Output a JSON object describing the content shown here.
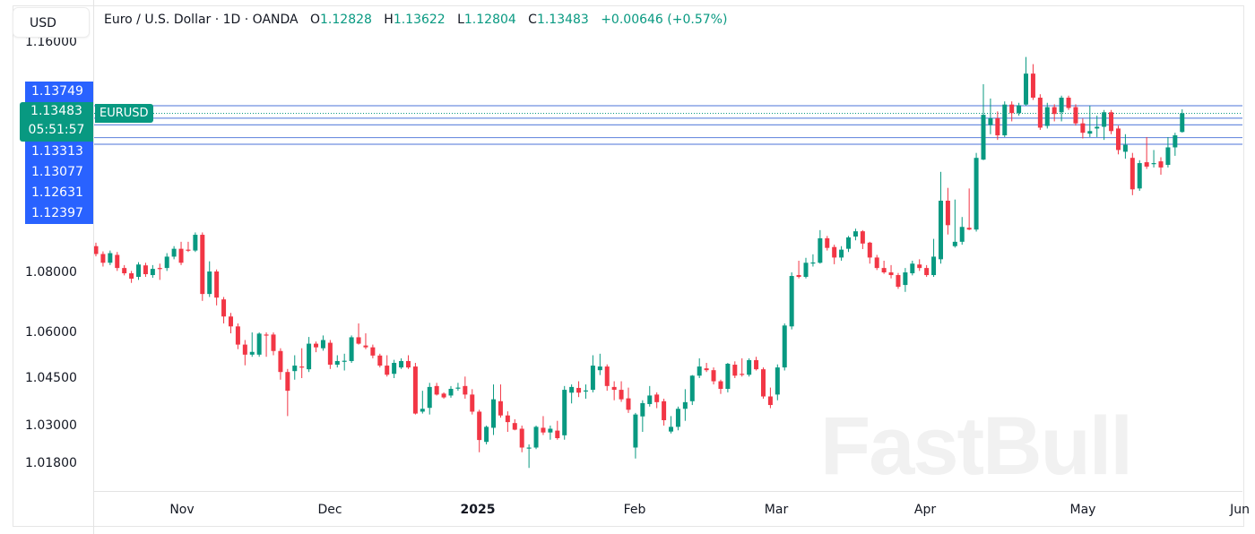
{
  "header": {
    "symbol_name": "Euro / U.S. Dollar · 1D · OANDA",
    "open_label": "O",
    "open": "1.12828",
    "high_label": "H",
    "high": "1.13622",
    "low_label": "L",
    "low": "1.12804",
    "close_label": "C",
    "close": "1.13483",
    "change": "+0.00646 (+0.57%)"
  },
  "currency_button": "USD",
  "symbol_tag": "EURUSD",
  "current_price": "1.13483",
  "countdown": "05:51:57",
  "price_line_labels": [
    "1.13749",
    "1.13313",
    "1.13077",
    "1.12631",
    "1.12397"
  ],
  "watermark": "FastBull",
  "colors": {
    "up": "#089981",
    "down": "#f23645",
    "price_line": "#2962ff"
  },
  "chart_data": {
    "type": "candlestick",
    "interval": "1D",
    "y_ticks": [
      "1.16000",
      "1.08000",
      "1.06000",
      "1.04500",
      "1.03000",
      "1.01800"
    ],
    "x_ticks": [
      "Nov",
      "Dec",
      "2025",
      "Feb",
      "Mar",
      "Apr",
      "May",
      "Jun"
    ],
    "price_lines": [
      1.13749,
      1.13313,
      1.13077,
      1.12631,
      1.12397
    ],
    "current_price": 1.13483,
    "grid": false,
    "ohlc": [
      [
        1.089,
        1.0902,
        1.0855,
        1.0863
      ],
      [
        1.0863,
        1.0872,
        1.082,
        1.0833
      ],
      [
        1.0833,
        1.0875,
        1.0825,
        1.0866
      ],
      [
        1.086,
        1.087,
        1.0805,
        1.0815
      ],
      [
        1.0815,
        1.0825,
        1.079,
        1.0797
      ],
      [
        1.0797,
        1.0805,
        1.0765,
        1.0779
      ],
      [
        1.0785,
        1.0835,
        1.0775,
        1.0827
      ],
      [
        1.0824,
        1.0833,
        1.0785,
        1.0794
      ],
      [
        1.0791,
        1.0825,
        1.0782,
        1.0812
      ],
      [
        1.0815,
        1.083,
        1.0775,
        1.0814
      ],
      [
        1.0815,
        1.0866,
        1.0805,
        1.0854
      ],
      [
        1.0854,
        1.089,
        1.0845,
        1.0881
      ],
      [
        1.0881,
        1.0905,
        1.0825,
        1.0833
      ],
      [
        1.0878,
        1.0905,
        1.087,
        1.0875
      ],
      [
        1.0875,
        1.0937,
        1.087,
        1.0929
      ],
      [
        1.0929,
        1.0937,
        1.0705,
        1.0728
      ],
      [
        1.0728,
        1.0838,
        1.0718,
        1.0803
      ],
      [
        1.0803,
        1.081,
        1.069,
        1.0716
      ],
      [
        1.071,
        1.0718,
        1.063,
        1.0653
      ],
      [
        1.0653,
        1.0665,
        1.0597,
        1.062
      ],
      [
        1.062,
        1.063,
        1.0545,
        1.056
      ],
      [
        1.056,
        1.0575,
        1.0492,
        1.0527
      ],
      [
        1.0527,
        1.06,
        1.052,
        1.0536
      ],
      [
        1.0527,
        1.06,
        1.052,
        1.0596
      ],
      [
        1.0593,
        1.06,
        1.052,
        1.0592
      ],
      [
        1.0593,
        1.06,
        1.0525,
        1.0539
      ],
      [
        1.0539,
        1.0548,
        1.0445,
        1.047
      ],
      [
        1.047,
        1.048,
        1.033,
        1.041
      ],
      [
        1.0473,
        1.0525,
        1.0445,
        1.0491
      ],
      [
        1.0488,
        1.0548,
        1.045,
        1.0487
      ],
      [
        1.0479,
        1.0585,
        1.047,
        1.0563
      ],
      [
        1.0563,
        1.057,
        1.0535,
        1.0551
      ],
      [
        1.0548,
        1.059,
        1.054,
        1.0575
      ],
      [
        1.0566,
        1.0575,
        1.048,
        1.0494
      ],
      [
        1.0494,
        1.0525,
        1.0485,
        1.0506
      ],
      [
        1.0506,
        1.053,
        1.0475,
        1.0507
      ],
      [
        1.0506,
        1.059,
        1.05,
        1.0584
      ],
      [
        1.0584,
        1.063,
        1.056,
        1.0563
      ],
      [
        1.0557,
        1.0597,
        1.0545,
        1.0551
      ],
      [
        1.0551,
        1.056,
        1.0515,
        1.0524
      ],
      [
        1.0524,
        1.053,
        1.0485,
        1.0491
      ],
      [
        1.0491,
        1.0525,
        1.0455,
        1.0461
      ],
      [
        1.0464,
        1.051,
        1.045,
        1.05
      ],
      [
        1.0485,
        1.0515,
        1.048,
        1.0506
      ],
      [
        1.0506,
        1.0525,
        1.048,
        1.0485
      ],
      [
        1.0488,
        1.05,
        1.0335,
        1.0338
      ],
      [
        1.0344,
        1.041,
        1.0338,
        1.0353
      ],
      [
        1.0356,
        1.0435,
        1.0335,
        1.0422
      ],
      [
        1.0425,
        1.0435,
        1.0395,
        1.0398
      ],
      [
        1.0401,
        1.0405,
        1.0385,
        1.0389
      ],
      [
        1.0395,
        1.0425,
        1.0388,
        1.0416
      ],
      [
        1.0419,
        1.0435,
        1.041,
        1.042
      ],
      [
        1.0425,
        1.0455,
        1.0385,
        1.0398
      ],
      [
        1.0398,
        1.0415,
        1.0335,
        1.0344
      ],
      [
        1.0344,
        1.035,
        1.0215,
        1.0254
      ],
      [
        1.0248,
        1.03,
        1.024,
        1.0296
      ],
      [
        1.0293,
        1.043,
        1.027,
        1.0383
      ],
      [
        1.0377,
        1.043,
        1.0325,
        1.0332
      ],
      [
        1.0332,
        1.0345,
        1.028,
        1.0311
      ],
      [
        1.0308,
        1.032,
        1.0285,
        1.0287
      ],
      [
        1.029,
        1.03,
        1.0215,
        1.023
      ],
      [
        1.0227,
        1.024,
        1.0165,
        1.023
      ],
      [
        1.023,
        1.03,
        1.0225,
        1.0296
      ],
      [
        1.0293,
        1.033,
        1.027,
        1.0278
      ],
      [
        1.0278,
        1.03,
        1.0255,
        1.029
      ],
      [
        1.0284,
        1.0315,
        1.0255,
        1.026
      ],
      [
        1.0269,
        1.0425,
        1.0255,
        1.0413
      ],
      [
        1.0404,
        1.043,
        1.037,
        1.0422
      ],
      [
        1.0419,
        1.044,
        1.039,
        1.0404
      ],
      [
        1.041,
        1.043,
        1.0385,
        1.0411
      ],
      [
        1.0413,
        1.0525,
        1.0405,
        1.0491
      ],
      [
        1.0476,
        1.053,
        1.046,
        1.0488
      ],
      [
        1.0488,
        1.0495,
        1.041,
        1.0425
      ],
      [
        1.0422,
        1.044,
        1.038,
        1.0413
      ],
      [
        1.0413,
        1.044,
        1.0375,
        1.0383
      ],
      [
        1.0386,
        1.042,
        1.034,
        1.035
      ],
      [
        1.023,
        1.034,
        1.0195,
        1.0335
      ],
      [
        1.0329,
        1.038,
        1.028,
        1.0371
      ],
      [
        1.0368,
        1.0425,
        1.036,
        1.0395
      ],
      [
        1.0398,
        1.0405,
        1.0355,
        1.0374
      ],
      [
        1.0377,
        1.0385,
        1.03,
        1.0317
      ],
      [
        1.0281,
        1.033,
        1.0275,
        1.0296
      ],
      [
        1.0296,
        1.036,
        1.0285,
        1.0353
      ],
      [
        1.0353,
        1.0415,
        1.0315,
        1.0374
      ],
      [
        1.0377,
        1.046,
        1.0365,
        1.0458
      ],
      [
        1.0458,
        1.0515,
        1.045,
        1.0488
      ],
      [
        1.0482,
        1.05,
        1.047,
        1.0476
      ],
      [
        1.0476,
        1.0485,
        1.043,
        1.044
      ],
      [
        1.044,
        1.0445,
        1.04,
        1.0416
      ],
      [
        1.0416,
        1.05,
        1.0405,
        1.0497
      ],
      [
        1.0494,
        1.0505,
        1.045,
        1.0458
      ],
      [
        1.0464,
        1.0515,
        1.0455,
        1.0463
      ],
      [
        1.0461,
        1.0515,
        1.0455,
        1.0509
      ],
      [
        1.0509,
        1.052,
        1.0475,
        1.0479
      ],
      [
        1.0479,
        1.0485,
        1.0385,
        1.0392
      ],
      [
        1.0392,
        1.042,
        1.0355,
        1.0365
      ],
      [
        1.0398,
        1.0495,
        1.038,
        1.0485
      ],
      [
        1.0485,
        1.063,
        1.0475,
        1.0623
      ],
      [
        1.062,
        1.08,
        1.061,
        1.0788
      ],
      [
        1.0791,
        1.084,
        1.078,
        1.0785
      ],
      [
        1.0785,
        1.085,
        1.078,
        1.0833
      ],
      [
        1.0833,
        1.0862,
        1.082,
        1.0834
      ],
      [
        1.0833,
        1.0945,
        1.083,
        1.0917
      ],
      [
        1.0917,
        1.0925,
        1.0875,
        1.0884
      ],
      [
        1.0887,
        1.0895,
        1.0828,
        1.0851
      ],
      [
        1.0851,
        1.089,
        1.084,
        1.0878
      ],
      [
        1.0881,
        1.0925,
        1.087,
        1.092
      ],
      [
        1.0923,
        1.095,
        1.091,
        1.0941
      ],
      [
        1.0941,
        1.0945,
        1.088,
        1.0899
      ],
      [
        1.0902,
        1.0905,
        1.083,
        1.0851
      ],
      [
        1.0851,
        1.086,
        1.0808,
        1.0815
      ],
      [
        1.0815,
        1.084,
        1.0795,
        1.08
      ],
      [
        1.08,
        1.0825,
        1.078,
        1.0791
      ],
      [
        1.0791,
        1.0798,
        1.0745,
        1.0752
      ],
      [
        1.0758,
        1.0815,
        1.0735,
        1.08
      ],
      [
        1.0797,
        1.084,
        1.079,
        1.083
      ],
      [
        1.0827,
        1.0845,
        1.0805,
        1.0815
      ],
      [
        1.0815,
        1.0825,
        1.0785,
        1.0791
      ],
      [
        1.0791,
        1.0915,
        1.0785,
        1.0854
      ],
      [
        1.0845,
        1.1145,
        1.083,
        1.1046
      ],
      [
        1.1046,
        1.109,
        1.093,
        1.0962
      ],
      [
        1.089,
        1.105,
        1.0885,
        1.0905
      ],
      [
        1.0905,
        1.099,
        1.0895,
        1.0956
      ],
      [
        1.0953,
        1.1088,
        1.0945,
        1.0947
      ],
      [
        1.0947,
        1.121,
        1.094,
        1.1193
      ],
      [
        1.1187,
        1.145,
        1.1185,
        1.1343
      ],
      [
        1.1307,
        1.14,
        1.1275,
        1.1331
      ],
      [
        1.1331,
        1.1355,
        1.1255,
        1.1271
      ],
      [
        1.1271,
        1.139,
        1.1265,
        1.1379
      ],
      [
        1.1379,
        1.139,
        1.132,
        1.1349
      ],
      [
        1.1349,
        1.1385,
        1.134,
        1.1376
      ],
      [
        1.1379,
        1.1545,
        1.1375,
        1.1487
      ],
      [
        1.1487,
        1.152,
        1.1395,
        1.1403
      ],
      [
        1.1403,
        1.1415,
        1.129,
        1.1298
      ],
      [
        1.1304,
        1.1385,
        1.1295,
        1.137
      ],
      [
        1.137,
        1.138,
        1.132,
        1.1346
      ],
      [
        1.1352,
        1.141,
        1.132,
        1.1403
      ],
      [
        1.1403,
        1.141,
        1.136,
        1.1367
      ],
      [
        1.137,
        1.138,
        1.1305,
        1.1313
      ],
      [
        1.1313,
        1.133,
        1.126,
        1.128
      ],
      [
        1.1277,
        1.1375,
        1.1265,
        1.1286
      ],
      [
        1.1295,
        1.134,
        1.1265,
        1.1301
      ],
      [
        1.1301,
        1.136,
        1.1255,
        1.1352
      ],
      [
        1.1352,
        1.136,
        1.1275,
        1.1286
      ],
      [
        1.1295,
        1.1305,
        1.1205,
        1.122
      ],
      [
        1.1214,
        1.1275,
        1.119,
        1.1238
      ],
      [
        1.1193,
        1.121,
        1.1065,
        1.1085
      ],
      [
        1.1088,
        1.1185,
        1.108,
        1.1175
      ],
      [
        1.1178,
        1.1265,
        1.1155,
        1.1163
      ],
      [
        1.1172,
        1.122,
        1.116,
        1.1175
      ],
      [
        1.1181,
        1.1195,
        1.1135,
        1.116
      ],
      [
        1.1169,
        1.1265,
        1.116,
        1.1229
      ],
      [
        1.1229,
        1.128,
        1.12,
        1.1271
      ],
      [
        1.12828,
        1.13622,
        1.12804,
        1.13483
      ]
    ]
  }
}
